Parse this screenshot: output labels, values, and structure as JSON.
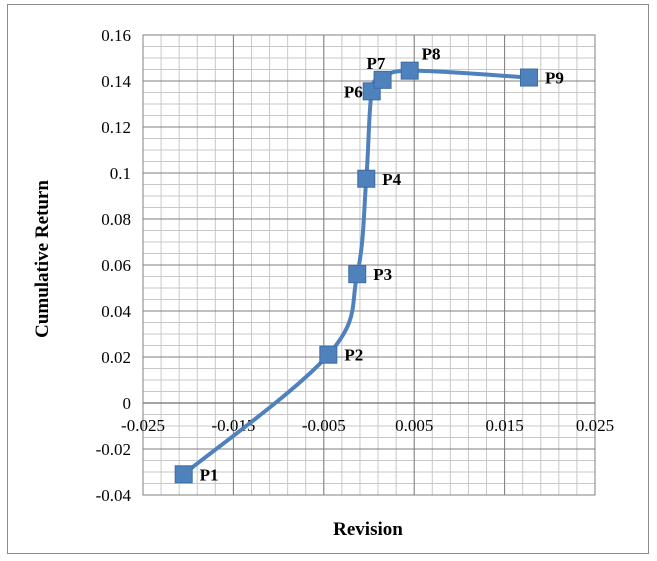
{
  "chart_data": {
    "type": "scatter",
    "title": "",
    "xlabel": "Revision",
    "ylabel": "Cumulative Return",
    "xlim": [
      -0.025,
      0.025
    ],
    "ylim": [
      -0.04,
      0.16
    ],
    "x_ticks": [
      -0.025,
      -0.015,
      -0.005,
      0.005,
      0.015,
      0.025
    ],
    "x_tick_labels": [
      "-0.025",
      "-0.015",
      "-0.005",
      "0.005",
      "0.015",
      "0.025"
    ],
    "y_ticks": [
      -0.04,
      -0.02,
      0,
      0.02,
      0.04,
      0.06,
      0.08,
      0.1,
      0.12,
      0.14,
      0.16
    ],
    "y_tick_labels": [
      "-0.04",
      "-0.02",
      "0",
      "0.02",
      "0.04",
      "0.06",
      "0.08",
      "0.1",
      "0.12",
      "0.14",
      "0.16"
    ],
    "grid": true,
    "minor_grid": true,
    "line": "smooth",
    "marker": "square",
    "series_color": "#4f81bd",
    "marker_edge_color": "#3a6ea5",
    "legend": false,
    "points": [
      {
        "label": "P1",
        "x": -0.0205,
        "y": -0.031
      },
      {
        "label": "P2",
        "x": -0.0045,
        "y": 0.021
      },
      {
        "label": "P3",
        "x": -0.0013,
        "y": 0.056
      },
      {
        "label": "P4",
        "x": -0.0003,
        "y": 0.0975
      },
      {
        "label": "P6",
        "x": 0.0003,
        "y": 0.1355
      },
      {
        "label": "P7",
        "x": 0.0015,
        "y": 0.1405
      },
      {
        "label": "P8",
        "x": 0.0045,
        "y": 0.1445
      },
      {
        "label": "P9",
        "x": 0.0177,
        "y": 0.1415
      }
    ]
  }
}
